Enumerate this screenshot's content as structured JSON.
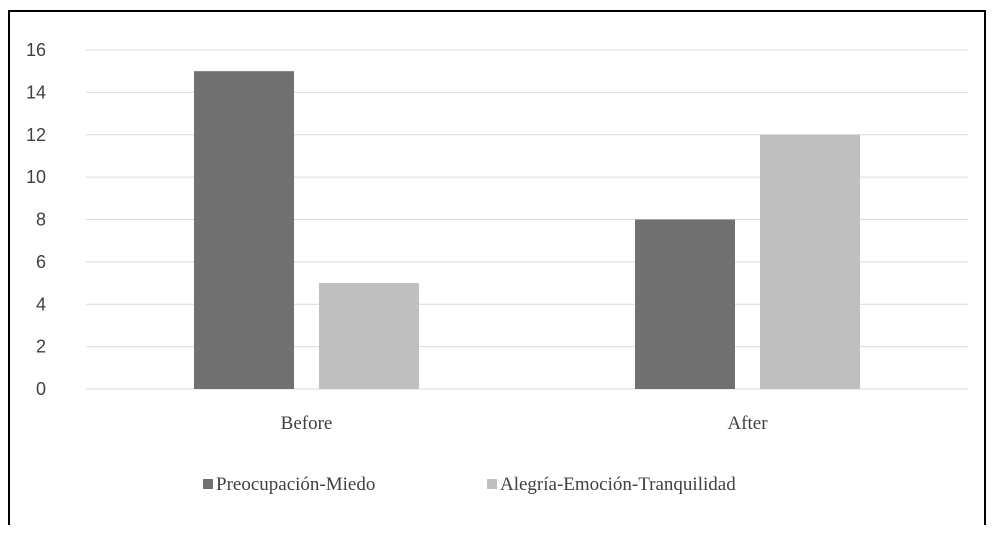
{
  "chart_data": {
    "type": "bar",
    "categories": [
      "Before",
      "After"
    ],
    "series": [
      {
        "name": "Preocupación-Miedo",
        "values": [
          15,
          8
        ],
        "color": "#707070"
      },
      {
        "name": "Alegría-Emoción-Tranquilidad",
        "values": [
          5,
          12
        ],
        "color": "#bfbfbf"
      }
    ],
    "ylim": [
      0,
      16
    ],
    "yticks": [
      0,
      2,
      4,
      6,
      8,
      10,
      12,
      14,
      16
    ],
    "grid": true,
    "legend_position": "bottom-center",
    "gridline_color": "#d9d9d9"
  }
}
